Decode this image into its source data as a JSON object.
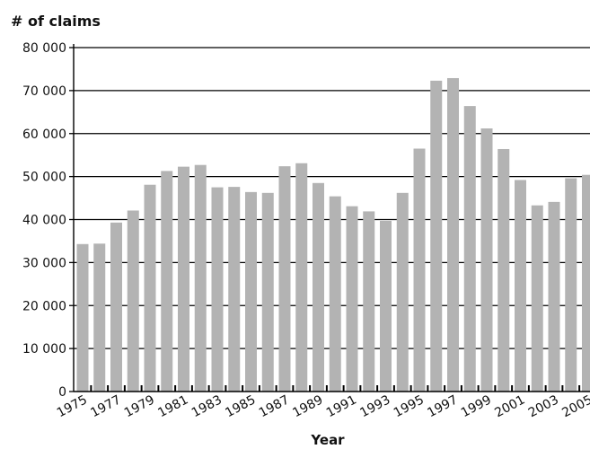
{
  "chart_data": {
    "type": "bar",
    "title": "",
    "ylabel": "# of claims",
    "xlabel": "Year",
    "ylim": [
      0,
      80000
    ],
    "yticks": [
      0,
      10000,
      20000,
      30000,
      40000,
      50000,
      60000,
      70000,
      80000
    ],
    "ytick_labels": [
      "0",
      "10 000",
      "20 000",
      "30 000",
      "40 000",
      "50 000",
      "60 000",
      "70 000",
      "80 000"
    ],
    "grid": true,
    "bar_color": "#b3b3b3",
    "categories": [
      "1975",
      "1976",
      "1977",
      "1978",
      "1979",
      "1980",
      "1981",
      "1982",
      "1983",
      "1984",
      "1985",
      "1986",
      "1987",
      "1988",
      "1989",
      "1990",
      "1991",
      "1992",
      "1993",
      "1994",
      "1995",
      "1996",
      "1997",
      "1998",
      "1999",
      "2000",
      "2001",
      "2002",
      "2003",
      "2004",
      "2005"
    ],
    "xtick_labels_shown": [
      "1975",
      "1977",
      "1979",
      "1981",
      "1983",
      "1985",
      "1987",
      "1989",
      "1991",
      "1993",
      "1995",
      "1997",
      "1999",
      "2001",
      "2003",
      "2005"
    ],
    "values": [
      34300,
      34400,
      39300,
      42100,
      48100,
      51300,
      52300,
      52700,
      47500,
      47600,
      46400,
      46200,
      52400,
      53100,
      48500,
      45400,
      43100,
      41900,
      39700,
      46200,
      56500,
      72300,
      72900,
      66400,
      61200,
      56400,
      49200,
      43300,
      44100,
      49600,
      50400
    ]
  }
}
